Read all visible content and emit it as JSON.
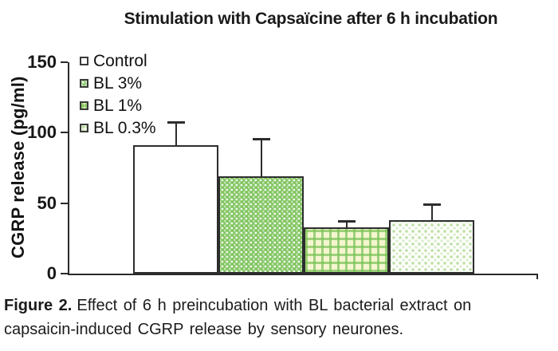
{
  "title": "Stimulation with Capsaïcine after 6 h incubation",
  "axis": {
    "ylabel": "CGRP release (pg/ml)"
  },
  "legend": {
    "items": [
      {
        "label": "Control",
        "style": "white"
      },
      {
        "label": "BL 3%",
        "style": "green-dots"
      },
      {
        "label": "BL 1%",
        "style": "green-plaid"
      },
      {
        "label": "BL 0.3%",
        "style": "pale-dots"
      }
    ]
  },
  "chart_data": {
    "type": "bar",
    "title": "Stimulation with Capsaïcine after 6 h incubation",
    "categories": [
      "Control",
      "BL 3%",
      "BL 1%",
      "BL 0.3%"
    ],
    "values": [
      91,
      69,
      33,
      38
    ],
    "error_plus": [
      17,
      27,
      5,
      12
    ],
    "xlabel": "",
    "ylabel": "CGRP release (pg/ml)",
    "yticks": [
      0,
      50,
      100,
      150
    ],
    "ylim": [
      0,
      150
    ],
    "grid": false,
    "legend_position": "upper-left-inside",
    "bar_fill_styles": [
      "white",
      "green-dots",
      "green-plaid",
      "pale-dots"
    ]
  },
  "caption": {
    "label": "Figure 2.",
    "text": "Effect of 6 h preincubation with BL bacterial extract on capsaicin-induced CGRP release by sensory neurones."
  },
  "colors": {
    "bar_green": "#7cc35a",
    "plaid_green": "#8cc763",
    "plaid_base": "#f4f6d0",
    "dot_green": "#a6d587",
    "axis": "#2a2a2a"
  }
}
